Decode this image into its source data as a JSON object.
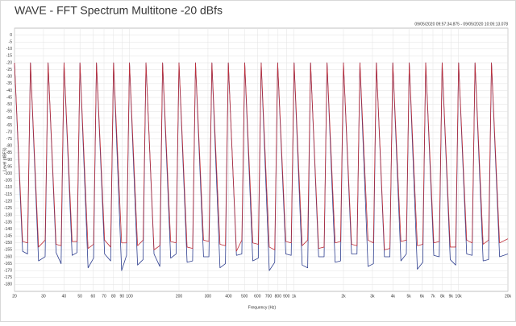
{
  "chart_data": {
    "type": "line",
    "title": "WAVE - FFT Spectrum Multitone -20 dBfs",
    "subtitle": "09/05/2020 09:57:34.875 - 09/05/2020 10:05:13.078",
    "xlabel": "Frequency (Hz)",
    "ylabel": "Level (dBFS)",
    "xscale": "log",
    "grid": true,
    "xlim": [
      20,
      20000
    ],
    "ylim": [
      -185,
      5
    ],
    "xticks": [
      20,
      30,
      40,
      50,
      60,
      70,
      80,
      90,
      100,
      200,
      300,
      400,
      500,
      600,
      700,
      800,
      900,
      {
        "value": 1000,
        "label": "1k"
      },
      {
        "value": 2000,
        "label": "2k"
      },
      {
        "value": 3000,
        "label": "3k"
      },
      {
        "value": 4000,
        "label": "4k"
      },
      {
        "value": 5000,
        "label": "5k"
      },
      {
        "value": 6000,
        "label": "6k"
      },
      {
        "value": 7000,
        "label": "7k"
      },
      {
        "value": 8000,
        "label": "8k"
      },
      {
        "value": 9000,
        "label": "9k"
      },
      {
        "value": 10000,
        "label": "10k"
      },
      {
        "value": 20000,
        "label": "20k"
      }
    ],
    "yticks": [
      0,
      -5,
      -10,
      -15,
      -20,
      -25,
      -30,
      -35,
      -40,
      -45,
      -50,
      -55,
      -60,
      -65,
      -70,
      -75,
      -80,
      -85,
      -90,
      -95,
      -100,
      -105,
      -110,
      -115,
      -120,
      -125,
      -130,
      -135,
      -140,
      -145,
      -150,
      -155,
      -160,
      -165,
      -170,
      -175,
      -180
    ],
    "x": [
      20,
      22.4,
      24,
      25,
      28,
      30.7,
      32,
      35.8,
      38.4,
      40,
      44.8,
      48,
      50,
      56,
      60.5,
      63,
      70.6,
      76.8,
      80,
      89.6,
      96,
      100,
      112,
      121,
      126,
      141,
      153,
      159,
      178,
      192,
      200,
      224,
      242,
      252,
      282,
      304,
      317,
      355,
      383,
      399,
      447,
      482,
      502,
      562,
      607,
      632,
      708,
      764,
      796,
      892,
      962,
      1002,
      1122,
      1212,
      1262,
      1413,
      1525,
      1589,
      1780,
      1920,
      2000,
      2240,
      2417,
      2518,
      2820,
      3043,
      3170,
      3550,
      3831,
      3991,
      4470,
      4823,
      5024,
      5627,
      6072,
      6325,
      7084,
      7644,
      7962,
      8917,
      9623,
      10024,
      11227,
      12114,
      12619,
      14133,
      15252,
      15887,
      17793,
      20000
    ],
    "series": [
      {
        "color": "#2f3f8f",
        "values": [
          -20,
          -156,
          -158,
          -20,
          -163,
          -160,
          -20,
          -157,
          -165,
          -20,
          -159,
          -157,
          -20,
          -168,
          -161,
          -20,
          -158,
          -163,
          -20,
          -170,
          -159,
          -20,
          -166,
          -162,
          -20,
          -158,
          -167,
          -20,
          -161,
          -158,
          -20,
          -164,
          -163,
          -20,
          -160,
          -160,
          -20,
          -168,
          -165,
          -20,
          -159,
          -158,
          -20,
          -163,
          -161,
          -20,
          -170,
          -164,
          -20,
          -158,
          -159,
          -20,
          -166,
          -168,
          -20,
          -160,
          -160,
          -20,
          -164,
          -163,
          -20,
          -158,
          -158,
          -20,
          -167,
          -165,
          -20,
          -160,
          -160,
          -20,
          -163,
          -158,
          -20,
          -169,
          -164,
          -20,
          -159,
          -160,
          -20,
          -162,
          -166,
          -20,
          -158,
          -159,
          -20,
          -163,
          -162,
          -20,
          -160,
          -158
        ]
      },
      {
        "color": "#c0303a",
        "values": [
          -20,
          -149,
          -150,
          -20,
          -153,
          -148,
          -20,
          -151,
          -152,
          -20,
          -149,
          -149,
          -20,
          -154,
          -151,
          -20,
          -148,
          -153,
          -20,
          -150,
          -150,
          -20,
          -152,
          -148,
          -20,
          -155,
          -152,
          -20,
          -149,
          -150,
          -20,
          -153,
          -154,
          -20,
          -148,
          -149,
          -20,
          -151,
          -152,
          -20,
          -156,
          -148,
          -20,
          -150,
          -151,
          -20,
          -153,
          -155,
          -20,
          -149,
          -150,
          -20,
          -152,
          -148,
          -20,
          -154,
          -153,
          -20,
          -150,
          -149,
          -20,
          -151,
          -152,
          -20,
          -148,
          -150,
          -20,
          -155,
          -154,
          -20,
          -149,
          -148,
          -20,
          -152,
          -151,
          -20,
          -150,
          -149,
          -20,
          -153,
          -153,
          -20,
          -148,
          -150,
          -20,
          -151,
          -148,
          -20,
          -150,
          -147
        ]
      }
    ]
  }
}
